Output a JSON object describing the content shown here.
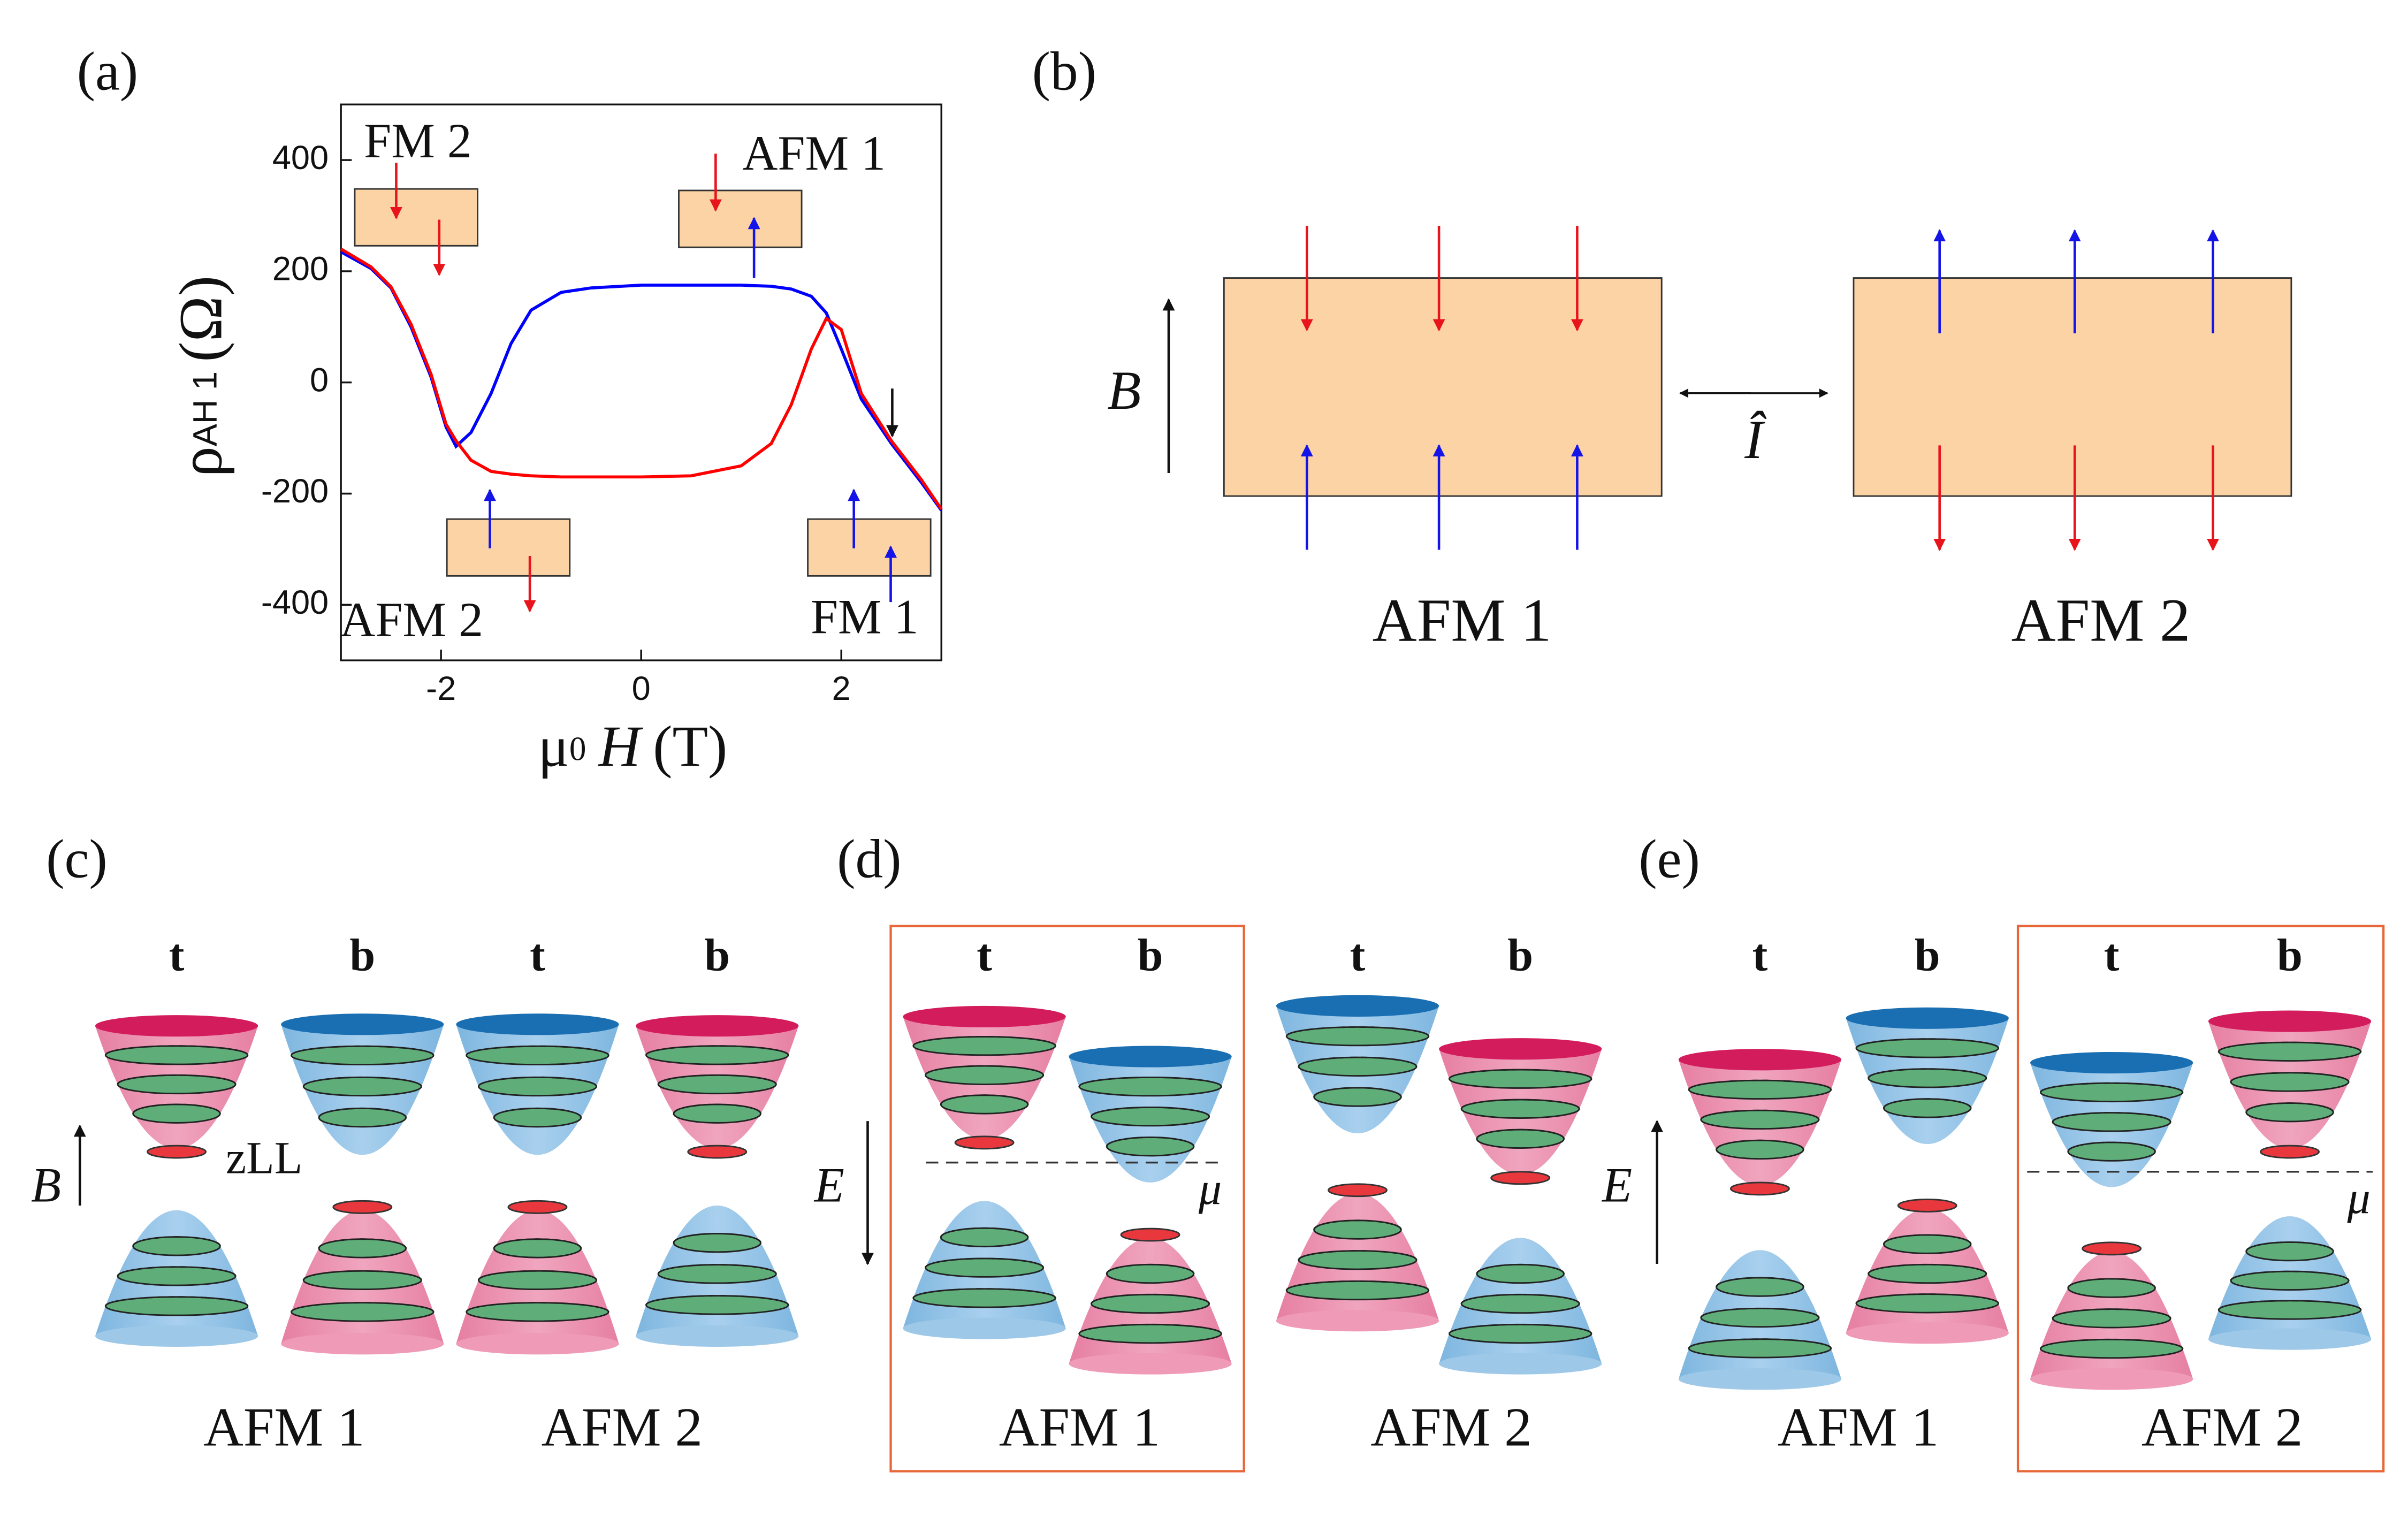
{
  "chart_data": {
    "type": "line",
    "x_label": {
      "mu": "μ",
      "sub": "0",
      "var": "H",
      "unit": "(T)"
    },
    "y_label": {
      "symbol": "ρ",
      "subscript": "AH 1",
      "unit": "(Ω)"
    },
    "x": [
      -3,
      -2.7,
      -2.5,
      -2.3,
      -2.1,
      -1.95,
      -1.85,
      -1.7,
      -1.5,
      -1.3,
      -1.1,
      -0.8,
      -0.5,
      0,
      0.5,
      1.0,
      1.3,
      1.5,
      1.7,
      1.85,
      2.0,
      2.2,
      2.5,
      2.8,
      3.0
    ],
    "series": [
      {
        "color": "#0000ff",
        "values": [
          235,
          205,
          170,
          100,
          10,
          -80,
          -115,
          -90,
          -20,
          70,
          130,
          162,
          170,
          175,
          175,
          175,
          173,
          168,
          155,
          125,
          60,
          -30,
          -110,
          -180,
          -230
        ]
      },
      {
        "color": "#ff0000",
        "values": [
          240,
          208,
          172,
          105,
          15,
          -75,
          -105,
          -140,
          -160,
          -165,
          -168,
          -170,
          -170,
          -170,
          -168,
          -150,
          -110,
          -40,
          60,
          115,
          95,
          -20,
          -105,
          -175,
          -228
        ]
      }
    ],
    "xlim": [
      -3,
      3
    ],
    "ylim": [
      -500,
      500
    ],
    "xticks": [
      -2,
      0,
      2
    ],
    "yticks": [
      -400,
      -200,
      0,
      200,
      400
    ],
    "annotations": [
      "FM 2",
      "AFM 1",
      "AFM 2",
      "FM 1"
    ]
  },
  "panel_labels": [
    "(a)",
    "(b)",
    "(c)",
    "(d)",
    "(e)"
  ],
  "panel_b": {
    "field_label": "B",
    "operator_label": "Î",
    "states": [
      "AFM 1",
      "AFM 2"
    ]
  },
  "panel_c": {
    "layers": [
      "t",
      "b",
      "t",
      "b"
    ],
    "zll_label": "zLL",
    "field_label": "B",
    "states": [
      "AFM 1",
      "AFM 2"
    ]
  },
  "panel_d": {
    "layers": [
      "t",
      "b",
      "t",
      "b"
    ],
    "field_label": "E",
    "mu_label": "μ",
    "states": [
      "AFM 1",
      "AFM 2"
    ]
  },
  "panel_e": {
    "layers": [
      "t",
      "b",
      "t",
      "b"
    ],
    "field_label": "E",
    "mu_label": "μ",
    "states": [
      "AFM 1",
      "AFM 2"
    ]
  }
}
